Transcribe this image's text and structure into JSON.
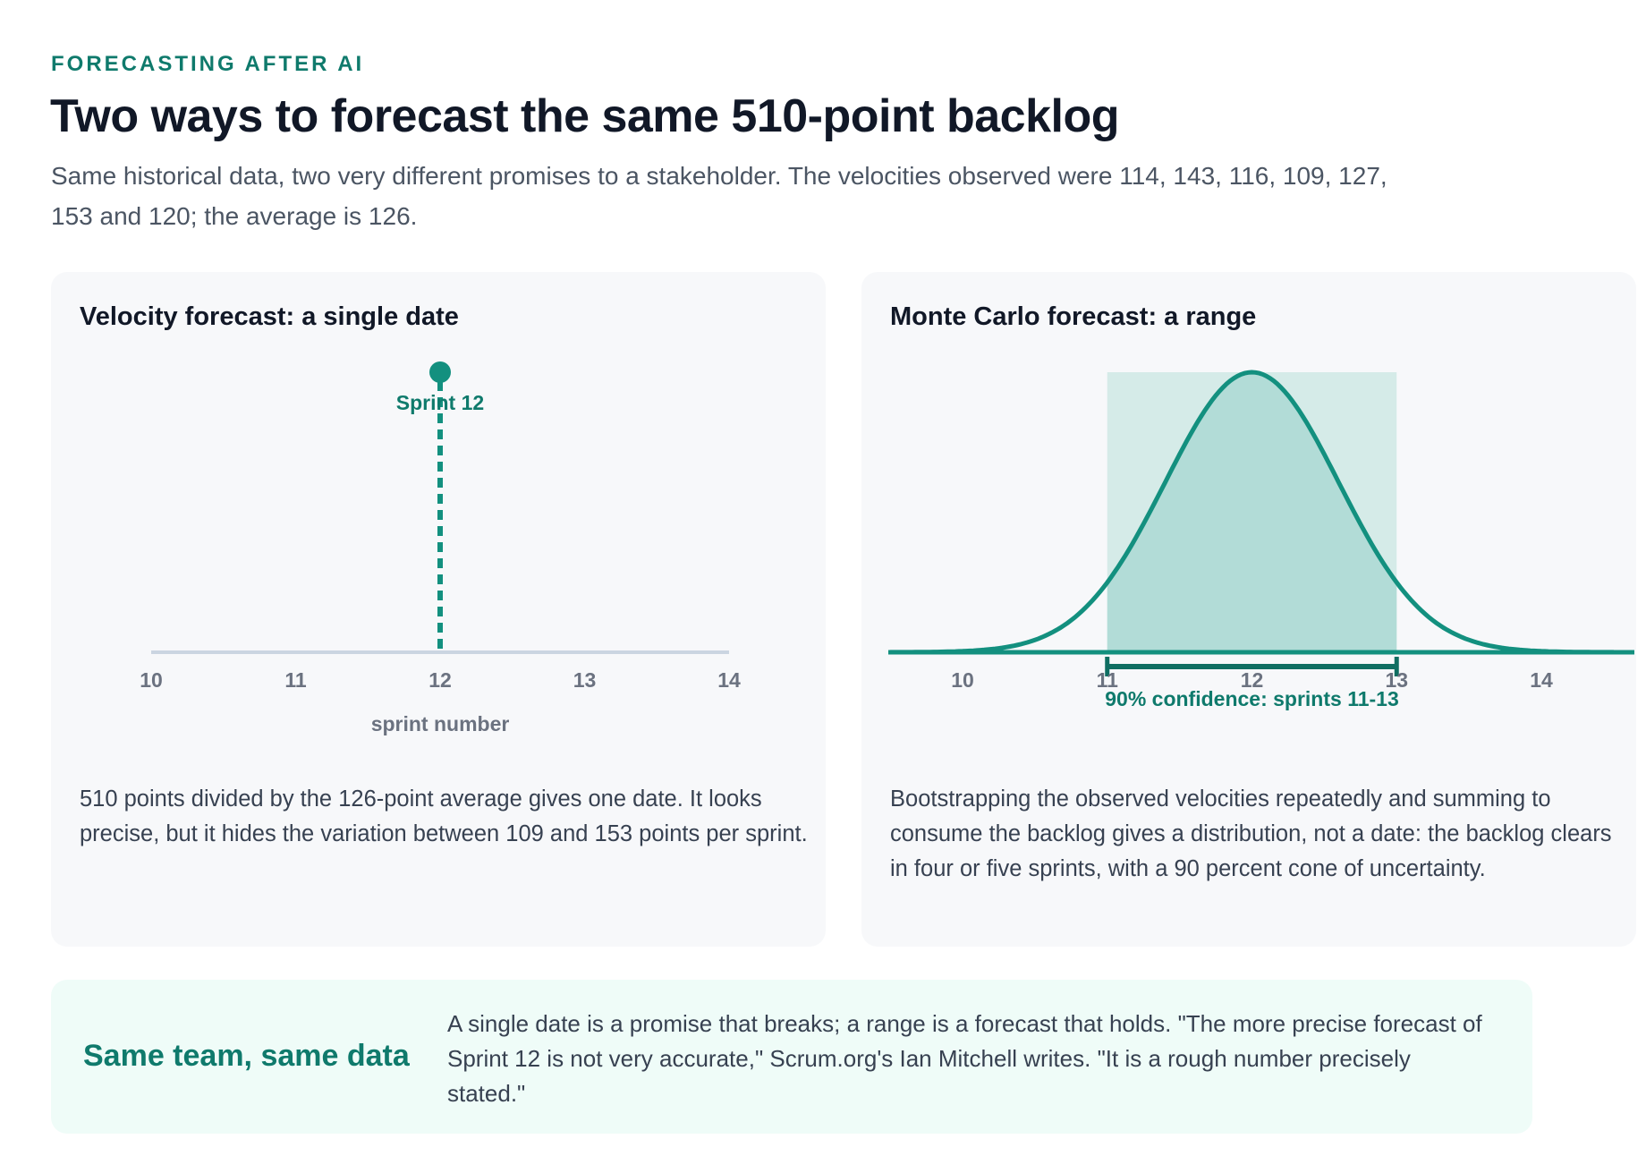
{
  "header": {
    "kicker": "FORECASTING AFTER AI",
    "title": "Two ways to forecast the same 510-point backlog",
    "subtitle": "Same historical data, two very different promises to a stakeholder. The velocities observed were 114, 143, 116, 109, 127, 153 and 120; the average is 126."
  },
  "colors": {
    "accent": "#13907f",
    "accent_dark": "#0f6e62",
    "axis": "#cbd5e1",
    "band": "#d5ebe8",
    "curve_fill": "#b2dcd7"
  },
  "chart_data": [
    {
      "type": "scatter",
      "title": "Velocity forecast: a single date",
      "xlabel": "sprint number",
      "xlim": [
        10,
        14
      ],
      "x_ticks": [
        10,
        11,
        12,
        13,
        14
      ],
      "points": [
        {
          "x": 12,
          "label": "Sprint 12"
        }
      ],
      "description": "510 points divided by the 126-point average gives one date. It looks precise, but it hides the variation between 109 and 153 points per sprint."
    },
    {
      "type": "area",
      "title": "Monte Carlo forecast: a range",
      "xlabel": "",
      "x_ticks": [
        10,
        11,
        12,
        13,
        14
      ],
      "distribution": {
        "center": 12,
        "spread": 0.6
      },
      "interval": {
        "low": 11,
        "high": 13,
        "label": "90% confidence: sprints 11-13"
      },
      "description": "Bootstrapping the observed velocities repeatedly and summing to consume the backlog gives a distribution, not a date: the backlog clears in four or five sprints, with a 90 percent cone of uncertainty."
    }
  ],
  "callout": {
    "heading": "Same team, same data",
    "text": "A single date is a promise that breaks; a range is a forecast that holds. \"The more precise forecast of Sprint 12 is not very accurate,\" Scrum.org's Ian Mitchell writes. \"It is a rough number precisely stated.\""
  }
}
